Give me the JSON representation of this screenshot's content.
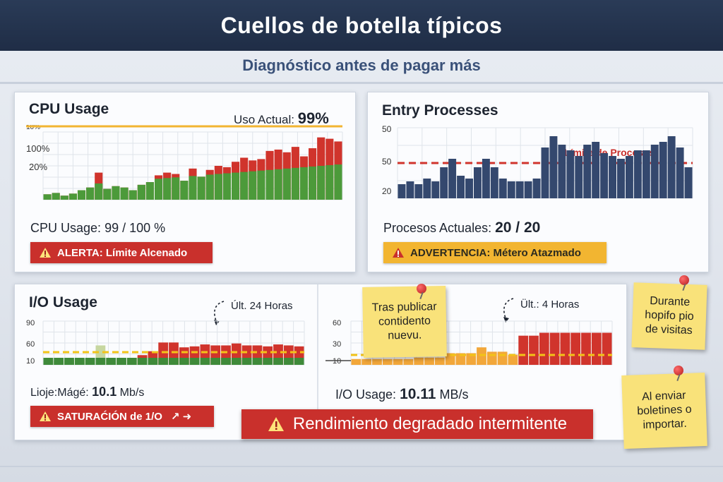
{
  "header": {
    "title": "Cuellos de botella típicos"
  },
  "subtitle": "Diagnóstico antes de pagar más",
  "cpu": {
    "title": "CPU Usage",
    "current_label": "Uso Actual:",
    "current_value": "99%",
    "tick_top": "10%",
    "tick_mid": "100%",
    "tick_low": "20%",
    "stat_label": "CPU Usage:",
    "stat_value": "99 / 100 %",
    "badge": "ALERTA: Límite Alcenado"
  },
  "entry": {
    "title": "Entry Processes",
    "limit_label": "Límite de Procesos",
    "tick_top": "50",
    "tick_mid": "50",
    "tick_low": "20",
    "stat_label": "Procesos Actuales:",
    "stat_value": "20 / 20",
    "badge": "ADVERTENCIA: Métero Atazmado"
  },
  "io_left": {
    "title": "I/O Usage",
    "annotation": "Últ. 24 Horas",
    "tick_top": "90",
    "tick_mid": "60",
    "tick_low": "10",
    "stat_label": "Lioje:Mágé:",
    "stat_value": "10.1",
    "stat_unit": "Mb/s",
    "badge": "SATURAĆIÓN de 1/O",
    "badge_symbols": "↗ ➜"
  },
  "io_right": {
    "annotation": "Ült.: 4 Horas",
    "tick_top": "60",
    "tick_mid": "30",
    "tick_low": "10",
    "stat_label": "I/O Usage:",
    "stat_value": "10.11",
    "stat_unit": "MB/s"
  },
  "alert_banner": "Rendimiento degradado intermitente",
  "notes": {
    "publish": "Tras publicar contidento nuevu.",
    "peak": "Durante hopifo pio de visitas",
    "newsletter": "Al enviar boletines o importar."
  },
  "icons": {
    "warning": "warning-triangle-icon",
    "pin": "pushpin-icon",
    "curved_arrow": "curved-arrow-icon"
  },
  "colors": {
    "header_bg": "#1f2d46",
    "red": "#c9302c",
    "green": "#4c9a3a",
    "yellow": "#f2b531",
    "navy_bar": "#34486e",
    "sticky": "#f9e27a"
  },
  "chart_data": [
    {
      "type": "bar",
      "title": "CPU Usage",
      "series": [
        {
          "name": "",
          "values": [
            8,
            10,
            6,
            9,
            14,
            18,
            40,
            16,
            20,
            18,
            14,
            22,
            26,
            36,
            40,
            38,
            28,
            46,
            34,
            44,
            50,
            48,
            56,
            62,
            58,
            60,
            72,
            74,
            70,
            78,
            64,
            76,
            92,
            90,
            86
          ]
        }
      ],
      "ylim": [
        0,
        100
      ]
    },
    {
      "type": "bar",
      "title": "Entry Processes",
      "values": [
        10,
        12,
        10,
        14,
        12,
        22,
        28,
        16,
        14,
        22,
        28,
        22,
        14,
        12,
        12,
        12,
        14,
        36,
        44,
        38,
        34,
        30,
        38,
        40,
        32,
        30,
        28,
        30,
        34,
        34,
        38,
        40,
        44,
        36,
        22
      ],
      "ylim": [
        0,
        50
      ]
    },
    {
      "type": "bar",
      "title": "I/O Usage",
      "values": [
        10,
        8,
        10,
        12,
        12,
        40,
        12,
        12,
        14,
        20,
        28,
        46,
        46,
        36,
        38,
        42,
        40,
        40,
        44,
        40,
        40,
        38,
        42,
        40,
        38
      ],
      "ylim": [
        0,
        90
      ]
    },
    {
      "type": "bar",
      "title": "I/O Usage",
      "values": [
        8,
        8,
        8,
        8,
        8,
        8,
        10,
        10,
        10,
        16,
        16,
        16,
        24,
        18,
        18,
        14,
        40,
        40,
        44,
        44,
        44,
        44,
        44,
        44,
        44
      ],
      "ylim": [
        0,
        60
      ]
    }
  ]
}
